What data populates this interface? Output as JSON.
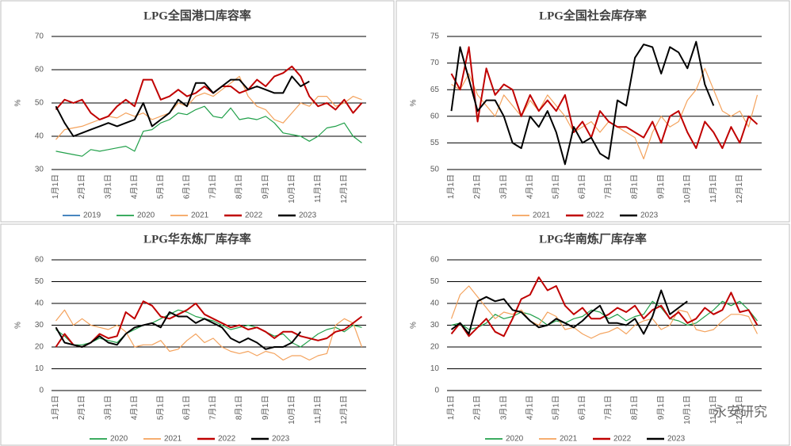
{
  "chart_data": [
    {
      "type": "line",
      "title": "LPG全国港口库容率",
      "y_label": "%",
      "categories": [
        "1月1日",
        null,
        null,
        "2月1日",
        null,
        null,
        "3月1日",
        null,
        null,
        "4月1日",
        null,
        null,
        "5月1日",
        null,
        null,
        "6月1日",
        null,
        null,
        "7月1日",
        null,
        null,
        "8月1日",
        null,
        null,
        "9月1日",
        null,
        null,
        "10月1日",
        null,
        null,
        "11月1日",
        null,
        null,
        "12月1日",
        null,
        null
      ],
      "ylim": [
        30,
        70
      ],
      "yticks": [
        30,
        40,
        50,
        60,
        70
      ],
      "grid": true,
      "legend": "bottom",
      "series": [
        {
          "name": "2019",
          "color": "#2e75b6",
          "width": 1.2,
          "values": [
            null,
            null,
            null,
            null,
            null,
            null,
            null,
            null,
            null,
            null,
            null,
            null,
            null,
            null,
            null,
            null,
            null,
            null,
            null,
            null,
            null,
            null,
            null,
            null,
            null,
            null,
            null,
            null,
            null,
            null,
            null,
            null,
            null,
            null,
            null,
            null
          ]
        },
        {
          "name": "2020",
          "color": "#21a04a",
          "width": 1.2,
          "values": [
            35.5,
            35,
            34.5,
            34,
            36,
            35.5,
            36,
            36.5,
            37,
            35.5,
            41.5,
            42,
            44,
            45,
            47,
            46.5,
            48,
            49,
            46,
            45.5,
            48.5,
            45,
            45.5,
            45,
            46,
            44,
            41,
            40.5,
            40,
            38.5,
            40,
            42.5,
            43,
            44,
            40,
            38
          ]
        },
        {
          "name": "2021",
          "color": "#f4a25c",
          "width": 1.2,
          "values": [
            39,
            42,
            42.5,
            43,
            44,
            45,
            46,
            45.5,
            47,
            46,
            47,
            45,
            46,
            47,
            50,
            49,
            52,
            53,
            52,
            54,
            56,
            58,
            52,
            49,
            48,
            45,
            44,
            47,
            50,
            49,
            52,
            52,
            49,
            50,
            52,
            51
          ]
        },
        {
          "name": "2022",
          "color": "#c00000",
          "width": 2,
          "values": [
            48,
            51,
            50,
            51,
            47,
            45,
            46,
            49,
            51,
            49,
            57,
            57,
            51,
            52,
            54,
            52,
            53,
            55,
            53,
            55,
            55,
            53,
            54,
            57,
            55,
            58,
            59,
            61,
            58,
            52,
            49,
            50,
            48,
            51,
            47,
            50
          ]
        },
        {
          "name": "2023",
          "color": "#000000",
          "width": 2,
          "values": [
            49,
            44,
            40,
            41,
            42,
            43,
            44,
            43,
            44,
            45,
            50,
            43,
            45,
            47,
            51,
            49,
            56,
            56,
            53,
            55,
            57,
            57,
            54,
            55,
            54,
            53,
            53,
            58,
            55,
            56.5,
            null,
            null,
            null,
            null,
            null,
            null
          ]
        }
      ]
    },
    {
      "type": "line",
      "title": "LPG全国社会库存率",
      "y_label": "%",
      "categories": [
        "1月1日",
        null,
        null,
        "2月1日",
        null,
        null,
        "3月1日",
        null,
        null,
        "4月1日",
        null,
        null,
        "5月1日",
        null,
        null,
        "6月1日",
        null,
        null,
        "7月1日",
        null,
        null,
        "8月1日",
        null,
        null,
        "9月1日",
        null,
        null,
        "10月1日",
        null,
        null,
        "11月1日",
        null,
        null,
        "12月1日",
        null,
        null
      ],
      "ylim": [
        50,
        75
      ],
      "yticks": [
        50,
        55,
        60,
        65,
        70,
        75
      ],
      "grid": true,
      "legend": "bottom",
      "series": [
        {
          "name": "2021",
          "color": "#f4a25c",
          "width": 1.2,
          "values": [
            66,
            65,
            68,
            64,
            62,
            60,
            64,
            62,
            60,
            63,
            61,
            64,
            62,
            60,
            57,
            58,
            59,
            57,
            59,
            58,
            57,
            56,
            52,
            57,
            60,
            58,
            59,
            63,
            65,
            69,
            65,
            61,
            60,
            61,
            58,
            64
          ]
        },
        {
          "name": "2022",
          "color": "#c00000",
          "width": 2,
          "values": [
            68,
            65,
            73,
            59,
            69,
            64,
            66,
            65,
            60,
            64,
            61,
            63,
            61,
            64,
            57,
            59,
            56,
            61,
            59,
            58,
            58,
            57,
            56,
            59,
            55,
            60,
            61,
            57,
            54,
            59,
            57,
            54,
            58,
            55,
            60,
            58.5
          ]
        },
        {
          "name": "2023",
          "color": "#000000",
          "width": 2,
          "values": [
            61,
            73,
            67,
            61,
            63,
            63,
            60,
            55,
            54,
            60,
            58,
            61,
            57,
            51,
            58,
            55,
            56,
            53,
            52,
            63,
            62,
            71,
            73.5,
            73,
            68,
            73,
            72,
            69,
            74,
            66,
            62,
            null,
            null,
            null,
            null,
            null
          ]
        }
      ]
    },
    {
      "type": "line",
      "title": "LPG华东炼厂库存率",
      "y_label": "%",
      "categories": [
        "1月1日",
        null,
        null,
        "2月1日",
        null,
        null,
        "3月1日",
        null,
        null,
        "4月1日",
        null,
        null,
        "5月1日",
        null,
        null,
        "6月1日",
        null,
        null,
        "7月1日",
        null,
        null,
        "8月1日",
        null,
        null,
        "9月1日",
        null,
        null,
        "10月1日",
        null,
        null,
        "11月1日",
        null,
        null,
        "12月1日",
        null,
        null
      ],
      "ylim": [
        0,
        60
      ],
      "yticks": [
        0,
        10,
        20,
        30,
        40,
        50,
        60
      ],
      "grid": true,
      "legend": "bottom",
      "series": [
        {
          "name": "2020",
          "color": "#21a04a",
          "width": 1.2,
          "values": [
            28,
            25,
            21,
            21,
            22,
            24,
            23,
            22,
            26,
            28,
            30,
            31,
            33,
            35,
            37,
            36,
            34,
            33,
            32,
            30,
            28,
            29,
            30,
            29,
            27,
            25,
            26,
            22,
            20,
            23,
            26,
            28,
            29,
            27,
            30,
            29
          ]
        },
        {
          "name": "2021",
          "color": "#f4a25c",
          "width": 1.2,
          "values": [
            32,
            37,
            30,
            33,
            30,
            29,
            28,
            30,
            27,
            20,
            21,
            21,
            23,
            18,
            19,
            23,
            26,
            22,
            24,
            20,
            18,
            17,
            18,
            16,
            18,
            17,
            14,
            16,
            16,
            14,
            16,
            17,
            30,
            33,
            31,
            20
          ]
        },
        {
          "name": "2022",
          "color": "#c00000",
          "width": 2,
          "values": [
            20,
            26,
            21,
            20,
            22,
            26,
            24,
            25,
            36,
            33,
            41,
            39,
            34,
            33,
            35,
            37,
            40,
            35,
            33,
            31,
            29,
            30,
            28,
            29,
            27,
            24,
            27,
            27,
            25,
            24,
            23,
            24,
            27,
            28,
            31,
            34
          ]
        },
        {
          "name": "2023",
          "color": "#000000",
          "width": 2,
          "values": [
            29,
            22,
            21,
            20,
            22,
            25,
            22,
            21,
            26,
            29,
            30,
            31,
            29,
            36,
            34,
            34,
            31,
            33,
            31,
            29,
            24,
            22,
            24,
            22,
            19,
            20,
            20,
            22,
            27,
            null,
            null,
            null,
            null,
            null,
            null,
            null
          ]
        }
      ]
    },
    {
      "type": "line",
      "title": "LPG华南炼厂库存率",
      "y_label": "%",
      "categories": [
        "1月1日",
        null,
        null,
        "2月1日",
        null,
        null,
        "3月1日",
        null,
        null,
        "4月1日",
        null,
        null,
        "5月1日",
        null,
        null,
        "6月1日",
        null,
        null,
        "7月1日",
        null,
        null,
        "8月1日",
        null,
        null,
        "9月1日",
        null,
        null,
        "10月1日",
        null,
        null,
        "11月1日",
        null,
        null,
        "12月1日",
        null,
        null
      ],
      "ylim": [
        0,
        60
      ],
      "yticks": [
        0,
        10,
        20,
        30,
        40,
        50,
        60
      ],
      "grid": true,
      "legend": "bottom",
      "series": [
        {
          "name": "2020",
          "color": "#21a04a",
          "width": 1.2,
          "values": [
            30,
            31,
            28,
            29,
            31,
            35,
            33,
            34,
            36,
            35,
            33,
            30,
            32,
            31,
            33,
            34,
            37,
            36,
            33,
            35,
            32,
            34,
            35,
            41,
            38,
            33,
            32,
            30,
            31,
            34,
            37,
            41,
            39,
            41,
            37,
            32
          ]
        },
        {
          "name": "2021",
          "color": "#f4a25c",
          "width": 1.2,
          "values": [
            33,
            44,
            48,
            43,
            38,
            33,
            36,
            35,
            37,
            32,
            30,
            36,
            34,
            28,
            29,
            26,
            24,
            26,
            27,
            29,
            26,
            30,
            32,
            33,
            28,
            30,
            37,
            36,
            28,
            27,
            28,
            32,
            35,
            35,
            34,
            26
          ]
        },
        {
          "name": "2022",
          "color": "#c00000",
          "width": 2,
          "values": [
            26,
            31,
            25,
            29,
            33,
            27,
            25,
            33,
            42,
            44,
            52,
            46,
            48,
            39,
            35,
            38,
            33,
            33,
            35,
            38,
            36,
            39,
            33,
            37,
            39,
            33,
            36,
            31,
            33,
            38,
            35,
            37,
            45,
            36,
            37,
            30
          ]
        },
        {
          "name": "2023",
          "color": "#000000",
          "width": 2,
          "values": [
            28,
            31,
            26,
            41,
            43,
            41,
            42,
            37,
            36,
            32,
            29,
            30,
            33,
            31,
            29,
            32,
            36,
            39,
            31,
            31,
            30,
            33,
            26,
            34,
            46,
            35,
            38,
            41,
            null,
            null,
            null,
            null,
            null,
            null,
            null,
            null
          ]
        }
      ]
    }
  ],
  "watermark": "永安研究"
}
